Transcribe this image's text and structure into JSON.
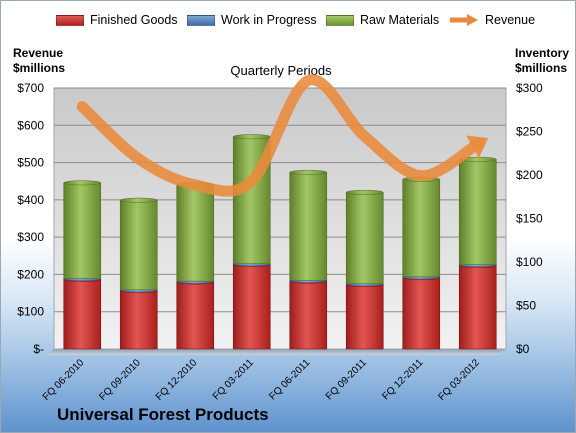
{
  "legend": [
    {
      "label": "Finished Goods",
      "color": "#c0312f",
      "kind": "bar"
    },
    {
      "label": "Work in Progress",
      "color": "#4f81bd",
      "kind": "bar"
    },
    {
      "label": "Raw Materials",
      "color": "#8fb04c",
      "kind": "bar"
    },
    {
      "label": "Revenue",
      "color": "#e98a3a",
      "kind": "line"
    }
  ],
  "axes": {
    "left_title_line1": "Revenue",
    "left_title_line2": "$millions",
    "right_title_line1": "Inventory",
    "right_title_line2": "$millions"
  },
  "subtitle": "Quarterly Periods",
  "company": "Universal Forest Products",
  "colors": {
    "finished": "#c0312f",
    "wip": "#4f81bd",
    "raw": "#8fb04c",
    "revenue": "#e98a3a",
    "plot_bg_top": "#c9c9c9",
    "plot_bg_bottom": "#f2f2f2"
  },
  "chart_data": {
    "type": "bar",
    "stacked": true,
    "categories": [
      "FQ 06-2010",
      "FQ 09-2010",
      "FQ 12-2010",
      "FQ 03-2011",
      "FQ 06-2011",
      "FQ 09-2011",
      "FQ 12-2011",
      "FQ 03-2012"
    ],
    "series": [
      {
        "name": "Finished Goods",
        "axis": "right",
        "values": [
          80,
          67,
          77,
          97,
          78,
          74,
          82,
          96
        ]
      },
      {
        "name": "Work in Progress",
        "axis": "right",
        "values": [
          1,
          1,
          1,
          1,
          1,
          1,
          1,
          1
        ]
      },
      {
        "name": "Raw Materials",
        "axis": "right",
        "values": [
          110,
          103,
          111,
          146,
          124,
          105,
          112,
          121
        ]
      },
      {
        "name": "Revenue",
        "type": "line",
        "axis": "left",
        "values": [
          650,
          510,
          440,
          450,
          720,
          570,
          465,
          550
        ]
      }
    ],
    "y_left": {
      "ylim": [
        0,
        700
      ],
      "ticks": [
        "$-",
        "$100",
        "$200",
        "$300",
        "$400",
        "$500",
        "$600",
        "$700"
      ],
      "tick_values": [
        0,
        100,
        200,
        300,
        400,
        500,
        600,
        700
      ]
    },
    "y_right": {
      "ylim": [
        0,
        300
      ],
      "ticks": [
        "$0",
        "$50",
        "$100",
        "$150",
        "$200",
        "$250",
        "$300"
      ],
      "tick_values": [
        0,
        50,
        100,
        150,
        200,
        250,
        300
      ]
    },
    "grid": true,
    "legend_position": "top"
  }
}
